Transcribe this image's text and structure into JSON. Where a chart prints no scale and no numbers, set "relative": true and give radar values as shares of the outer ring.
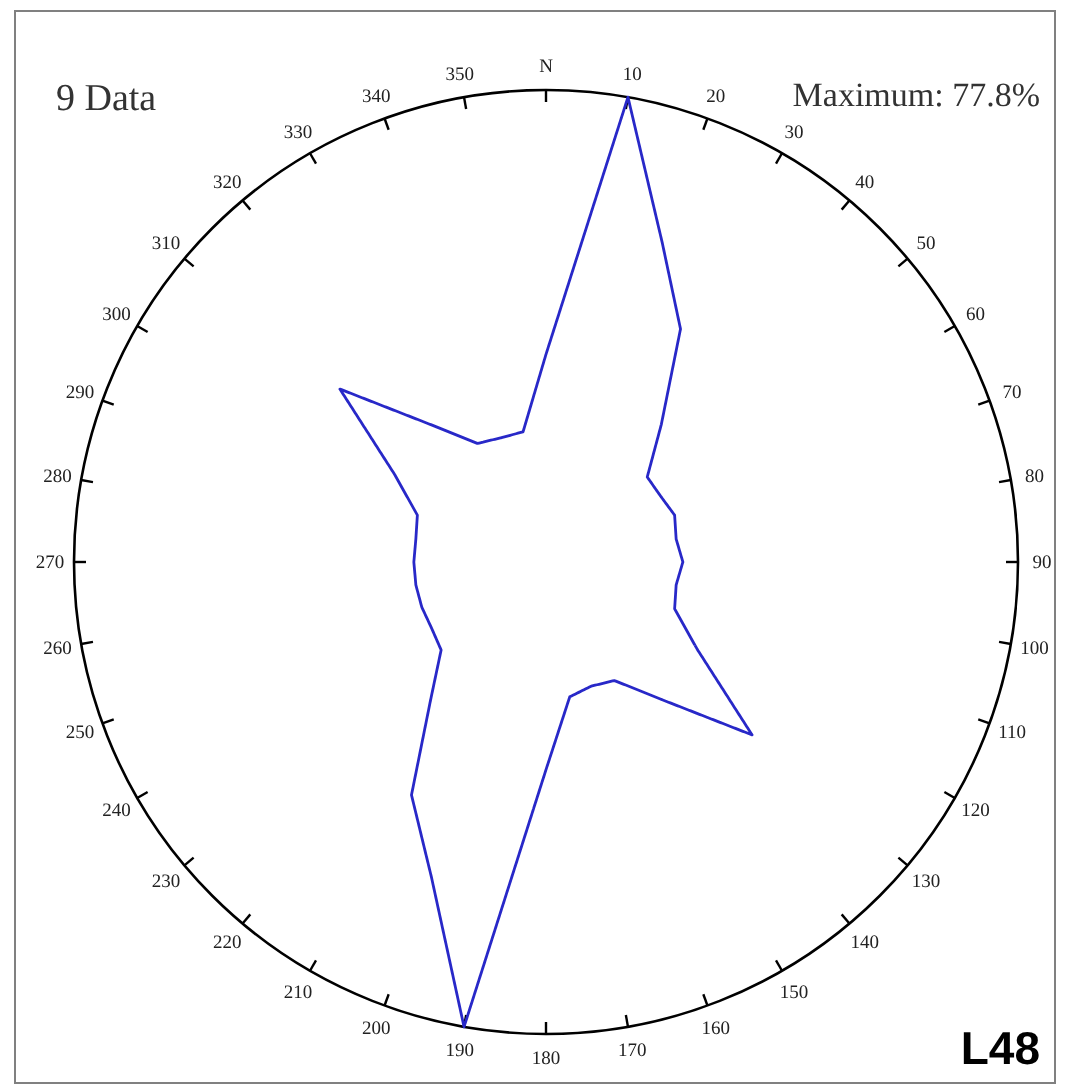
{
  "chart_data": {
    "type": "radar",
    "title": "9 Data",
    "annotations": [
      "Maximum: 77.8%",
      "L48"
    ],
    "categories": [
      "N",
      "10",
      "20",
      "30",
      "40",
      "50",
      "60",
      "70",
      "80",
      "90",
      "100",
      "110",
      "120",
      "130",
      "140",
      "150",
      "160",
      "170",
      "180",
      "190",
      "200",
      "210",
      "220",
      "230",
      "240",
      "250",
      "260",
      "270",
      "280",
      "290",
      "300",
      "310",
      "320",
      "330",
      "340",
      "350"
    ],
    "relative": true,
    "series": [
      {
        "color": "#2828c8",
        "values": [
          0.44,
          1.0,
          0.72,
          0.57,
          0.38,
          0.28,
          0.28,
          0.29,
          0.28,
          0.29,
          0.28,
          0.29,
          0.37,
          0.57,
          0.38,
          0.29,
          0.28,
          0.29,
          0.44,
          1.0,
          0.71,
          0.57,
          0.38,
          0.29,
          0.28,
          0.28,
          0.28,
          0.28,
          0.28,
          0.29,
          0.37,
          0.57,
          0.38,
          0.29,
          0.28,
          0.28
        ]
      }
    ]
  }
}
